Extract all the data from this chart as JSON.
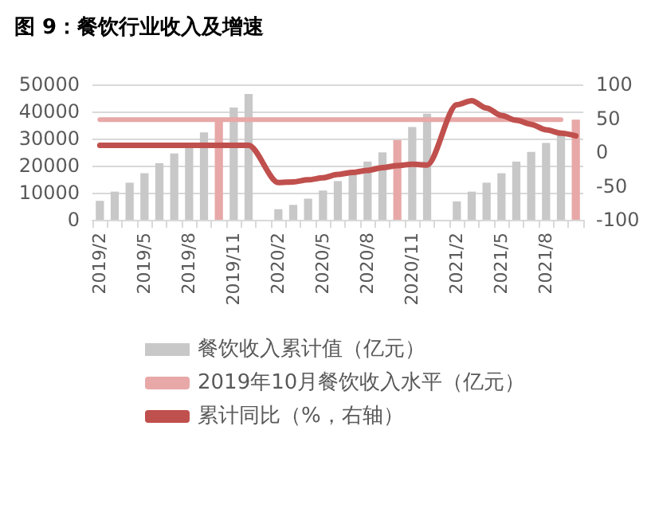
{
  "chart_data": {
    "type": "bar",
    "title": "图 9：餐饮行业收入及增速",
    "categories": [
      "2019/2",
      null,
      null,
      "2019/5",
      null,
      null,
      "2019/8",
      null,
      null,
      "2019/11",
      null,
      null,
      "2020/2",
      null,
      null,
      "2020/5",
      null,
      null,
      "2020/8",
      null,
      null,
      "2020/11",
      null,
      null,
      "2021/2",
      null,
      null,
      "2021/5",
      null,
      null,
      "2021/8",
      null,
      null
    ],
    "series": [
      {
        "name": "餐饮收入累计值（亿元）",
        "color": "#c8c8c8",
        "colors": [
          "#c8c8c8",
          "#c8c8c8",
          "#c8c8c8",
          "#c8c8c8",
          "#c8c8c8",
          "#c8c8c8",
          "#c8c8c8",
          "#c8c8c8",
          "#e8a8a8",
          "#c8c8c8",
          "#c8c8c8",
          "#c8c8c8",
          "#c8c8c8",
          "#c8c8c8",
          "#c8c8c8",
          "#c8c8c8",
          "#c8c8c8",
          "#c8c8c8",
          "#c8c8c8",
          "#c8c8c8",
          "#e8a8a8",
          "#c8c8c8",
          "#c8c8c8",
          "#c8c8c8",
          "#c8c8c8",
          "#c8c8c8",
          "#c8c8c8",
          "#c8c8c8",
          "#c8c8c8",
          "#c8c8c8",
          "#c8c8c8",
          "#c8c8c8",
          "#e8a8a8"
        ],
        "values": [
          7000,
          10400,
          13700,
          17200,
          20900,
          24500,
          28400,
          32300,
          37000,
          41500,
          46500,
          null,
          3900,
          5500,
          7800,
          10800,
          14300,
          16600,
          21500,
          24900,
          29400,
          34300,
          39200,
          null,
          6800,
          10400,
          13700,
          17200,
          21500,
          25100,
          28400,
          31400,
          37000
        ]
      },
      {
        "name": "2019年10月餐饮收入水平（亿元）",
        "type": "line",
        "color": "#e8a8a8",
        "values": [
          37000,
          37000,
          37000,
          37000,
          37000,
          37000,
          37000,
          37000,
          37000,
          37000,
          37000,
          37000,
          37000,
          37000,
          37000,
          37000,
          37000,
          37000,
          37000,
          37000,
          37000,
          37000,
          37000,
          37000,
          37000,
          37000,
          37000,
          37000,
          37000,
          37000,
          37000,
          37000,
          null
        ]
      },
      {
        "name": "累计同比（%，右轴）",
        "type": "line",
        "axis": "y2",
        "color": "#c0504d",
        "values": [
          10,
          10,
          10,
          10,
          10,
          10,
          10,
          10,
          10,
          10,
          10,
          null,
          -45,
          -44,
          -41,
          -38,
          -33,
          -30,
          -27,
          -23,
          -20,
          -18,
          -19,
          null,
          70,
          76,
          65,
          54,
          47,
          41,
          33,
          28,
          24
        ]
      }
    ],
    "ylim": [
      0,
      50000
    ],
    "yticks": [
      0,
      10000,
      20000,
      30000,
      40000,
      50000
    ],
    "y2lim": [
      -100,
      100
    ],
    "y2ticks": [
      -100,
      -50,
      0,
      50,
      100
    ],
    "grid": "y",
    "legend": "bottom",
    "marker": "none",
    "line_style": "solid"
  }
}
